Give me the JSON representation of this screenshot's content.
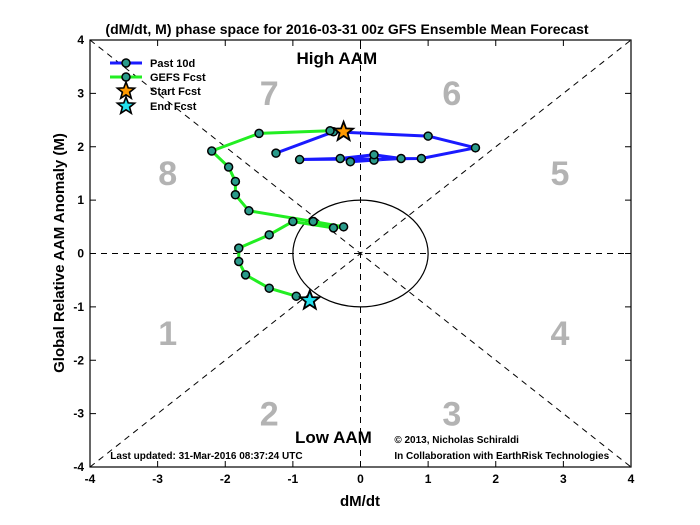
{
  "chart_data": {
    "type": "scatter",
    "title": "(dM/dt, M) phase space for 2016-03-31 00z GFS Ensemble Mean Forecast",
    "xlabel": "dM/dt",
    "ylabel": "Global Relative AAM Anomaly (M)",
    "xlim": [
      -4,
      4
    ],
    "ylim": [
      -4,
      4
    ],
    "xticks": [
      -4,
      -3,
      -2,
      -1,
      0,
      1,
      2,
      3,
      4
    ],
    "yticks": [
      -4,
      -3,
      -2,
      -1,
      0,
      1,
      2,
      3,
      4
    ],
    "grid": false,
    "legend_position": "top-left",
    "colors": {
      "past": "#1a1aff",
      "forecast": "#22ee22",
      "marker_fill": "#2a9a8a",
      "start_star": "#ff9900",
      "end_star": "#22e0ee",
      "phase_numbers": "#b3b3b3"
    },
    "series": [
      {
        "name": "Past 10d",
        "x": [
          -0.15,
          0.2,
          0.6,
          0.2,
          -0.3,
          -0.9,
          0.9,
          1.7,
          1.0,
          -0.4,
          -1.25
        ],
        "y": [
          1.72,
          1.75,
          1.78,
          1.85,
          1.78,
          1.76,
          1.78,
          1.98,
          2.2,
          2.28,
          1.88
        ]
      },
      {
        "name": "GEFS Fcst",
        "x": [
          -0.75,
          -0.95,
          -1.35,
          -1.7,
          -1.8,
          -1.8,
          -1.35,
          -1.0,
          -0.4,
          -0.25,
          -0.7,
          -1.65,
          -1.85,
          -1.85,
          -1.95,
          -2.2,
          -1.5,
          -0.45
        ],
        "y": [
          -0.88,
          -0.8,
          -0.65,
          -0.4,
          -0.15,
          0.1,
          0.35,
          0.6,
          0.48,
          0.5,
          0.6,
          0.8,
          1.1,
          1.35,
          1.62,
          1.92,
          2.25,
          2.3
        ]
      }
    ],
    "start_fcst": {
      "name": "Start Fcst",
      "x": -0.25,
      "y": 2.28
    },
    "end_fcst": {
      "name": "End Fcst",
      "x": -0.75,
      "y": -0.88
    },
    "phase_labels": [
      "1",
      "2",
      "3",
      "4",
      "5",
      "6",
      "7",
      "8"
    ],
    "annotations": {
      "high": "High AAM",
      "low": "Low AAM",
      "copyright": "©  2013, Nicholas Schiraldi",
      "collab": "In Collaboration with EarthRisk Technologies",
      "updated": "Last updated: 31-Mar-2016 08:37:24 UTC"
    }
  }
}
